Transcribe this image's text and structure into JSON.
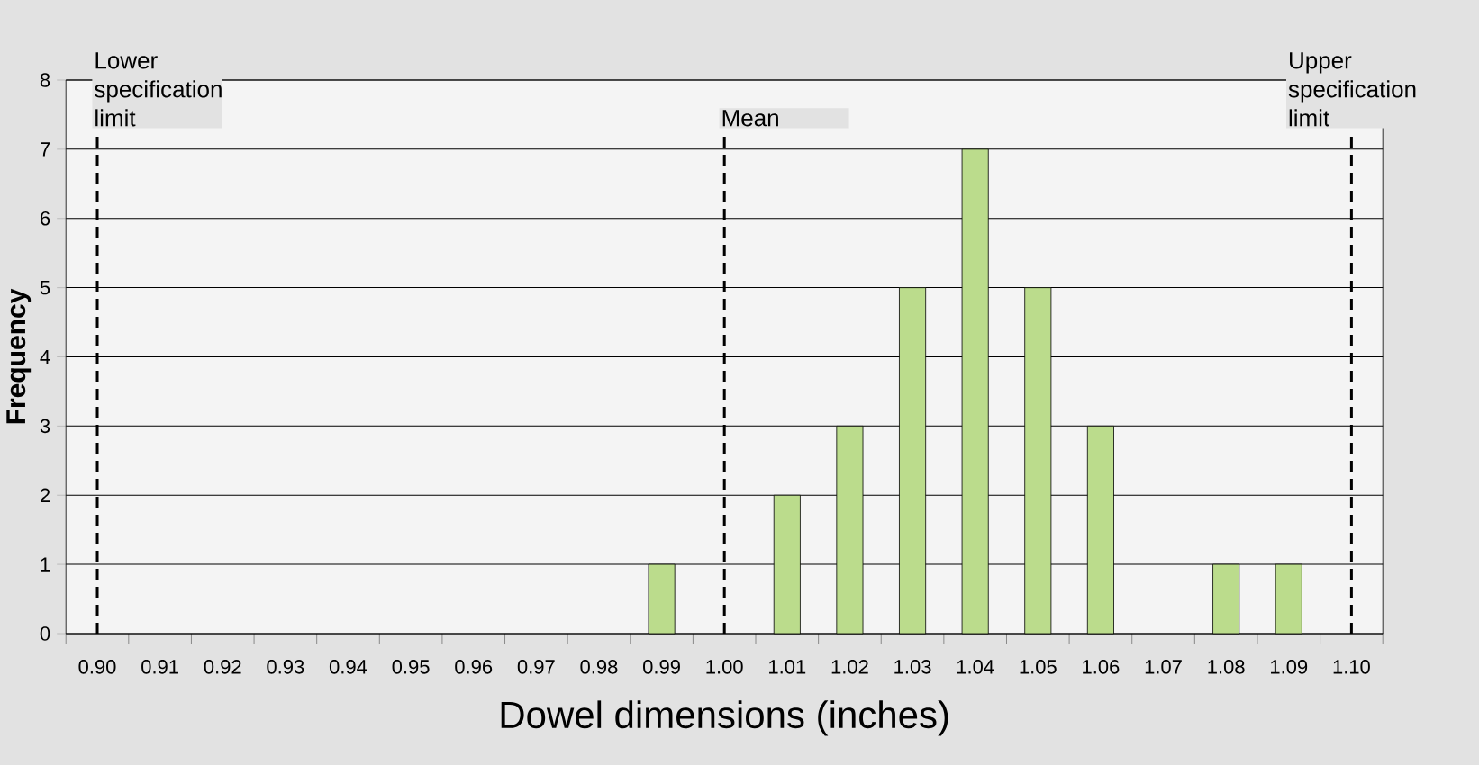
{
  "chart_data": {
    "type": "bar",
    "xlabel": "Dowel dimensions (inches)",
    "ylabel": "Frequency",
    "categories": [
      "0.90",
      "0.91",
      "0.92",
      "0.93",
      "0.94",
      "0.95",
      "0.96",
      "0.97",
      "0.98",
      "0.99",
      "1.00",
      "1.01",
      "1.02",
      "1.03",
      "1.04",
      "1.05",
      "1.06",
      "1.07",
      "1.08",
      "1.09",
      "1.10"
    ],
    "values": [
      0,
      0,
      0,
      0,
      0,
      0,
      0,
      0,
      0,
      1,
      0,
      2,
      3,
      5,
      7,
      5,
      3,
      0,
      1,
      1,
      0
    ],
    "color": "#bbdc8c",
    "ylim": [
      0,
      8
    ],
    "yticks": [
      0,
      1,
      2,
      3,
      4,
      5,
      6,
      7,
      8
    ],
    "grid": "y",
    "ref_lines": [
      {
        "axis": "x",
        "value": "0.90",
        "label": "Lower specification limit",
        "line_style": "dashed",
        "color": "#000000"
      },
      {
        "axis": "x",
        "value": "1.00",
        "label": "Mean",
        "line_style": "dashed",
        "color": "#000000"
      },
      {
        "axis": "x",
        "value": "1.10",
        "label": "Upper specification limit",
        "line_style": "dashed",
        "color": "#000000"
      }
    ]
  }
}
